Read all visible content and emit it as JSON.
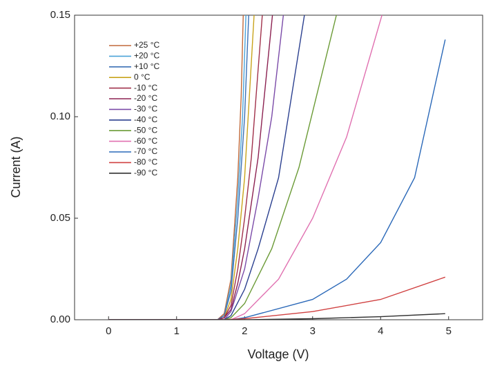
{
  "chart_data": {
    "type": "line",
    "x_label": "Voltage (V)",
    "y_label": "Current (A)",
    "xlim": [
      -0.5,
      5.5
    ],
    "ylim": [
      0,
      0.15
    ],
    "xticks": [
      0,
      1,
      2,
      3,
      4,
      5
    ],
    "yticks": [
      {
        "value": 0,
        "label": "0.00"
      },
      {
        "value": 0.05,
        "label": "0.05"
      },
      {
        "value": 0.1,
        "label": "0.10"
      },
      {
        "value": 0.15,
        "label": "0.15"
      }
    ],
    "legend": "upper left",
    "series": [
      {
        "name": "+25 °C",
        "color": "#c0693a",
        "x": [
          0,
          1.6,
          1.7,
          1.8,
          1.9,
          1.95,
          1.98
        ],
        "values": [
          0,
          0,
          0.003,
          0.02,
          0.07,
          0.11,
          0.15
        ]
      },
      {
        "name": "+20 °C",
        "color": "#4aa3d8",
        "x": [
          0,
          1.6,
          1.7,
          1.8,
          1.9,
          1.97,
          2.02
        ],
        "values": [
          0,
          0,
          0.002,
          0.017,
          0.06,
          0.1,
          0.15
        ]
      },
      {
        "name": "+10 °C",
        "color": "#3a6fb5",
        "x": [
          0,
          1.6,
          1.7,
          1.8,
          1.9,
          2.0,
          2.06
        ],
        "values": [
          0,
          0,
          0.002,
          0.014,
          0.05,
          0.1,
          0.15
        ]
      },
      {
        "name": "0 °C",
        "color": "#c8a31a",
        "x": [
          0,
          1.6,
          1.7,
          1.8,
          1.9,
          2.0,
          2.14
        ],
        "values": [
          0,
          0,
          0.001,
          0.01,
          0.035,
          0.07,
          0.15
        ]
      },
      {
        "name": "-10 °C",
        "color": "#a0304a",
        "x": [
          0,
          1.6,
          1.7,
          1.8,
          1.9,
          2.0,
          2.1,
          2.26
        ],
        "values": [
          0,
          0,
          0.001,
          0.007,
          0.025,
          0.05,
          0.08,
          0.15
        ]
      },
      {
        "name": "-20 °C",
        "color": "#8b2050",
        "x": [
          0,
          1.6,
          1.7,
          1.8,
          1.9,
          2.0,
          2.2,
          2.41
        ],
        "values": [
          0,
          0,
          0.001,
          0.005,
          0.018,
          0.035,
          0.08,
          0.15
        ]
      },
      {
        "name": "-30 °C",
        "color": "#7a4aa8",
        "x": [
          0,
          1.6,
          1.7,
          1.8,
          2.0,
          2.2,
          2.4,
          2.57
        ],
        "values": [
          0,
          0,
          0,
          0.004,
          0.025,
          0.06,
          0.1,
          0.15
        ]
      },
      {
        "name": "-40 °C",
        "color": "#2a3f8f",
        "x": [
          0,
          1.6,
          1.7,
          1.8,
          2.0,
          2.2,
          2.5,
          2.88
        ],
        "values": [
          0,
          0,
          0,
          0.002,
          0.015,
          0.035,
          0.07,
          0.15
        ]
      },
      {
        "name": "-50 °C",
        "color": "#6a9a35",
        "x": [
          0,
          1.6,
          1.7,
          1.8,
          2.0,
          2.4,
          2.8,
          3.35
        ],
        "values": [
          0,
          0,
          0,
          0.001,
          0.008,
          0.035,
          0.075,
          0.15
        ]
      },
      {
        "name": "-60 °C",
        "color": "#e070b0",
        "x": [
          0,
          1.6,
          1.8,
          2.0,
          2.5,
          3.0,
          3.5,
          4.02
        ],
        "values": [
          0,
          0,
          0,
          0.003,
          0.02,
          0.05,
          0.09,
          0.15
        ]
      },
      {
        "name": "-70 °C",
        "color": "#2a68b8",
        "x": [
          0,
          1.6,
          1.8,
          2.0,
          3.0,
          3.5,
          4.0,
          4.5,
          4.95
        ],
        "values": [
          0,
          0,
          0,
          0.001,
          0.01,
          0.02,
          0.038,
          0.07,
          0.138
        ]
      },
      {
        "name": "-80 °C",
        "color": "#d04040",
        "x": [
          0,
          1.7,
          2.0,
          3.0,
          4.0,
          4.95
        ],
        "values": [
          0,
          0,
          0.0005,
          0.004,
          0.01,
          0.021
        ]
      },
      {
        "name": "-90 °C",
        "color": "#303030",
        "x": [
          0,
          1.7,
          2.0,
          3.0,
          4.0,
          4.95
        ],
        "values": [
          0,
          0,
          0,
          0.0005,
          0.0015,
          0.003
        ]
      }
    ]
  }
}
